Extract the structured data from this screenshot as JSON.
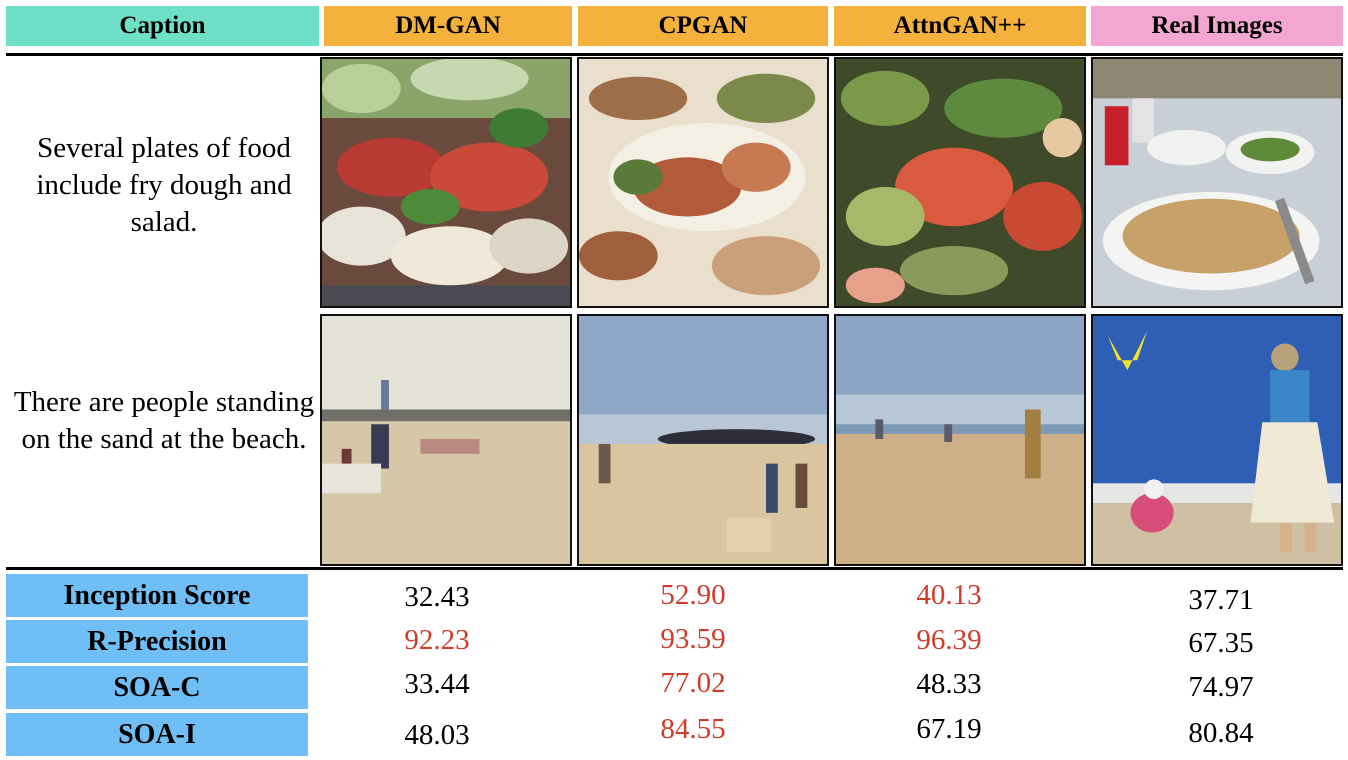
{
  "header": {
    "caption": "Caption",
    "dm_gan": "DM-GAN",
    "cpgan": "CPGAN",
    "attngan": "AttnGAN++",
    "real": "Real Images"
  },
  "colors": {
    "caption_header_bg": "#6ee0c8",
    "method_header_bg": "#f4b13c",
    "real_header_bg": "#f3a6d1",
    "metric_label_bg": "#6fbff6",
    "highlight_red": "#d13b2b"
  },
  "rows": [
    {
      "caption": "Several plates of food include fry dough and salad."
    },
    {
      "caption": "There are people standing on the sand at the beach."
    }
  ],
  "metrics": [
    {
      "label": "Inception Score",
      "dm_gan": "32.43",
      "cpgan": "52.90",
      "attngan": "40.13",
      "real": "37.71"
    },
    {
      "label": "R-Precision",
      "dm_gan": "92.23",
      "cpgan": "93.59",
      "attngan": "96.39",
      "real": "67.35"
    },
    {
      "label": "SOA-C",
      "dm_gan": "33.44",
      "cpgan": "77.02",
      "attngan": "48.33",
      "real": "74.97"
    },
    {
      "label": "SOA-I",
      "dm_gan": "48.03",
      "cpgan": "84.55",
      "attngan": "67.19",
      "real": "80.84"
    }
  ]
}
